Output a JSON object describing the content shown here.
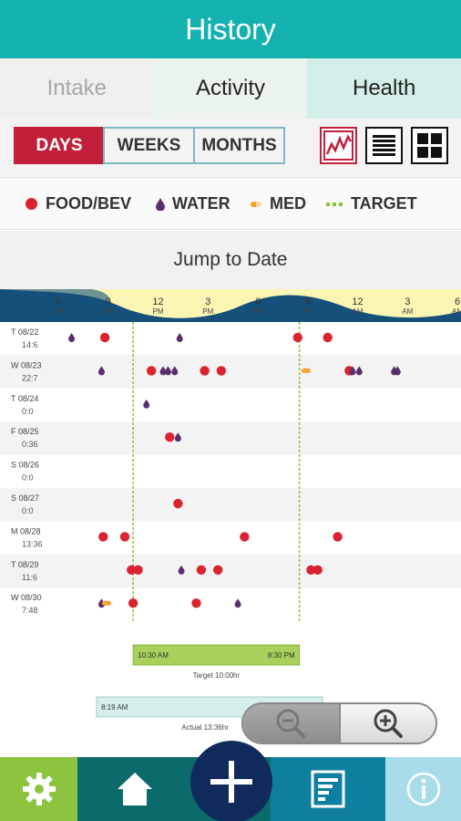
{
  "header": {
    "title": "History"
  },
  "tabs": [
    {
      "label": "Intake"
    },
    {
      "label": "Activity"
    },
    {
      "label": "Health"
    }
  ],
  "range": {
    "days": "DAYS",
    "weeks": "WEEKS",
    "months": "MONTHS"
  },
  "legend": {
    "food": "FOOD/BEV",
    "water": "WATER",
    "med": "MED",
    "target": "TARGET"
  },
  "jump_label": "Jump to Date",
  "colors": {
    "food": "#d9232f",
    "water": "#5b2d6e",
    "med": "#f7a12a",
    "target": "#8ac23c",
    "accent": "#14b1b1"
  },
  "chart_data": {
    "type": "scatter",
    "time_ticks": [
      {
        "h": 6,
        "l1": "6",
        "l2": "AM"
      },
      {
        "h": 9,
        "l1": "9",
        "l2": "AM"
      },
      {
        "h": 12,
        "l1": "12",
        "l2": "PM"
      },
      {
        "h": 15,
        "l1": "3",
        "l2": "PM"
      },
      {
        "h": 18,
        "l1": "6",
        "l2": "PM"
      },
      {
        "h": 21,
        "l1": "9",
        "l2": "PM"
      },
      {
        "h": 24,
        "l1": "12",
        "l2": "AM"
      },
      {
        "h": 27,
        "l1": "3",
        "l2": "AM"
      },
      {
        "h": 30,
        "l1": "6",
        "l2": "AM"
      }
    ],
    "rows": [
      {
        "day": "T",
        "date": "08/22",
        "sub": "14:6",
        "events": [
          [
            "water",
            6.8
          ],
          [
            "food",
            8.8
          ],
          [
            "water",
            13.3
          ],
          [
            "food",
            20.4
          ],
          [
            "food",
            22.2
          ]
        ]
      },
      {
        "day": "W",
        "date": "08/23",
        "sub": "22:7",
        "events": [
          [
            "water",
            8.6
          ],
          [
            "food",
            11.6
          ],
          [
            "water",
            12.3
          ],
          [
            "water",
            12.6
          ],
          [
            "water",
            13.0
          ],
          [
            "food",
            14.8
          ],
          [
            "food",
            15.8
          ],
          [
            "med",
            20.9
          ],
          [
            "food",
            23.5
          ],
          [
            "water",
            23.7
          ],
          [
            "water",
            24.1
          ],
          [
            "water",
            26.2
          ],
          [
            "water",
            26.4
          ]
        ]
      },
      {
        "day": "T",
        "date": "08/24",
        "sub": "0:0",
        "events": [
          [
            "water",
            11.3
          ]
        ]
      },
      {
        "day": "F",
        "date": "08/25",
        "sub": "0:36",
        "events": [
          [
            "food",
            12.7
          ],
          [
            "water",
            13.2
          ]
        ]
      },
      {
        "day": "S",
        "date": "08/26",
        "sub": "0:0",
        "events": []
      },
      {
        "day": "S",
        "date": "08/27",
        "sub": "0:0",
        "events": [
          [
            "food",
            13.2
          ]
        ]
      },
      {
        "day": "M",
        "date": "08/28",
        "sub": "13:36",
        "events": [
          [
            "food",
            8.7
          ],
          [
            "food",
            10.0
          ],
          [
            "food",
            17.2
          ],
          [
            "food",
            22.8
          ]
        ]
      },
      {
        "day": "T",
        "date": "08/29",
        "sub": "11:6",
        "events": [
          [
            "food",
            10.4
          ],
          [
            "food",
            10.8
          ],
          [
            "water",
            13.4
          ],
          [
            "food",
            14.6
          ],
          [
            "food",
            15.6
          ],
          [
            "food",
            21.2
          ],
          [
            "food",
            21.6
          ]
        ]
      },
      {
        "day": "W",
        "date": "08/30",
        "sub": "7:48",
        "events": [
          [
            "water",
            8.6
          ],
          [
            "med",
            8.9
          ],
          [
            "food",
            10.5
          ],
          [
            "food",
            14.3
          ],
          [
            "water",
            16.8
          ]
        ]
      }
    ],
    "target_window": {
      "start": 10.5,
      "end": 20.5
    }
  },
  "target_bar": {
    "start_label": "10:30 AM",
    "end_label": "8:30 PM",
    "caption": "Target 10:00hr"
  },
  "actual_bar": {
    "start_label": "8:19 AM",
    "caption": "Actual 13:36hr"
  },
  "bottom_nav": [
    "gear-icon",
    "home-icon",
    "add-icon",
    "report-icon",
    "info-icon"
  ]
}
